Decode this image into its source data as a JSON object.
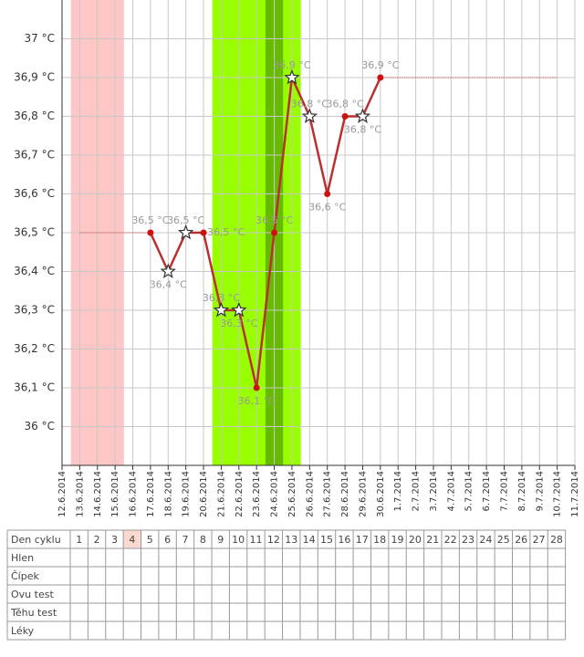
{
  "chart_data": {
    "type": "line",
    "categories": [
      "12.6.2014",
      "13.6.2014",
      "14.6.2014",
      "15.6.2014",
      "16.6.2014",
      "17.6.2014",
      "18.6.2014",
      "19.6.2014",
      "20.6.2014",
      "21.6.2014",
      "22.6.2014",
      "23.6.2014",
      "24.6.2014",
      "25.6.2014",
      "26.6.2014",
      "27.6.2014",
      "28.6.2014",
      "29.6.2014",
      "30.6.2014",
      "1.7.2014",
      "2.7.2014",
      "3.7.2014",
      "4.7.2014",
      "5.7.2014",
      "6.7.2014",
      "7.7.2014",
      "8.7.2014",
      "9.7.2014",
      "10.7.2014",
      "11.7.2014"
    ],
    "series": [
      {
        "color": "#b83030",
        "values": [
          null,
          null,
          null,
          null,
          null,
          36.5,
          36.4,
          36.5,
          36.5,
          36.3,
          36.3,
          36.1,
          36.5,
          36.9,
          36.8,
          36.6,
          36.8,
          36.8,
          36.9,
          null,
          null,
          null,
          null,
          null,
          null,
          null,
          null,
          null,
          null,
          null
        ],
        "value_labels": [
          null,
          null,
          null,
          null,
          null,
          "36,5 °C",
          "36,4 °C",
          "36,5 °C",
          "36,5 °C",
          "36,3 °C",
          "36,3 °C",
          "36,1 °C",
          "36,5 °C",
          "36,9 °C",
          "36,8 °C",
          "36,6 °C",
          "36,8 °C",
          "36,8 °C",
          "36,9 °C",
          null,
          null,
          null,
          null,
          null,
          null,
          null,
          null,
          null,
          null,
          null
        ],
        "markers": [
          null,
          null,
          null,
          null,
          null,
          "dot",
          "star",
          "star",
          "dot",
          "star",
          "star",
          "dot",
          "dot",
          "star",
          "star",
          "dot",
          "dot",
          "star",
          "dot",
          null,
          null,
          null,
          null,
          null,
          null,
          null,
          null,
          null,
          null,
          null
        ],
        "label_positions": [
          null,
          null,
          null,
          null,
          null,
          "above",
          "below",
          "above",
          "right",
          "above",
          "below",
          "below",
          "above",
          "above",
          "above",
          "below",
          "above",
          "below",
          "above",
          null,
          null,
          null,
          null,
          null,
          null,
          null,
          null,
          null,
          null,
          null
        ]
      }
    ],
    "ylim": [
      35.9,
      37.1
    ],
    "yticks": [
      {
        "value": 36,
        "label": "36 °C"
      },
      {
        "value": 36.1,
        "label": "36,1 °C"
      },
      {
        "value": 36.2,
        "label": "36,2 °C"
      },
      {
        "value": 36.3,
        "label": "36,3 °C"
      },
      {
        "value": 36.4,
        "label": "36,4 °C"
      },
      {
        "value": 36.5,
        "label": "36,5 °C"
      },
      {
        "value": 36.6,
        "label": "36,6 °C"
      },
      {
        "value": 36.7,
        "label": "36,7 °C"
      },
      {
        "value": 36.8,
        "label": "36,8 °C"
      },
      {
        "value": 36.9,
        "label": "36,9 °C"
      },
      {
        "value": 37,
        "label": "37 °C"
      }
    ],
    "grid": true,
    "bands": [
      {
        "start": "13.6.2014",
        "end": "15.6.2014",
        "color": "#ffc6c6"
      },
      {
        "start": "21.6.2014",
        "end": "25.6.2014",
        "color": "#99ff00"
      },
      {
        "start": "24.6.2014",
        "end": "24.6.2014",
        "color": "#66bb00"
      }
    ],
    "reference_lines": [
      {
        "value": 36.5,
        "start": "13.6.2014",
        "end": "17.6.2014",
        "color": "#cc4444"
      },
      {
        "value": 36.9,
        "start": "30.6.2014",
        "end": "10.7.2014",
        "color": "#cc4444"
      }
    ]
  },
  "table": {
    "header": "Den cyklu",
    "days": [
      1,
      2,
      3,
      4,
      5,
      6,
      7,
      8,
      9,
      10,
      11,
      12,
      13,
      14,
      15,
      16,
      17,
      18,
      19,
      20,
      21,
      22,
      23,
      24,
      25,
      26,
      27,
      28
    ],
    "today": 4,
    "rows": [
      "Hlen",
      "Čípek",
      "Ovu test",
      "Těhu test",
      "Léky"
    ]
  }
}
